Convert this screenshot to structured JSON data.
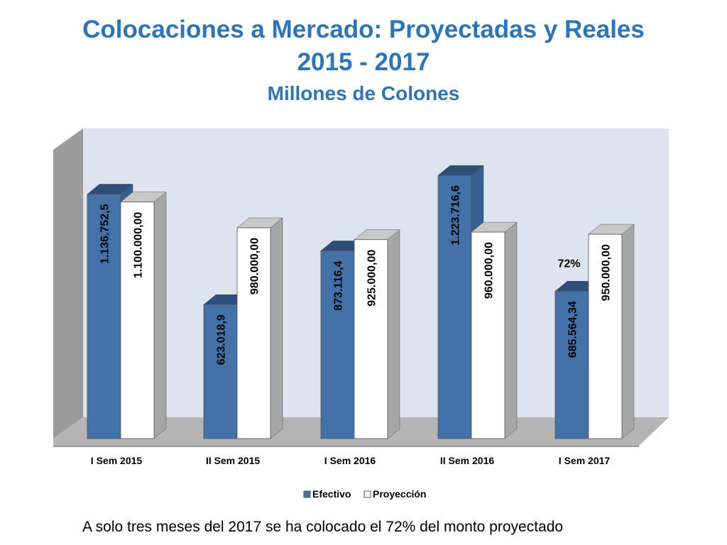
{
  "title": {
    "line1": "Colocaciones a Mercado: Proyectadas y Reales",
    "line2": "2015 - 2017",
    "line3": "Millones de Colones"
  },
  "chart_data": {
    "type": "bar",
    "categories": [
      "I Sem 2015",
      "II Sem 2015",
      "I Sem 2016",
      "II Sem 2016",
      "I Sem 2017"
    ],
    "series": [
      {
        "name": "Efectivo",
        "color": "#4472a8",
        "values": [
          1136752.5,
          623018.9,
          873116.4,
          1223716.6,
          685564.34
        ],
        "labels": [
          "1.136.752,5",
          "623.018,9",
          "873.116,4",
          "1.223.716,6",
          "685.564,34"
        ]
      },
      {
        "name": "Proyección",
        "color": "#ffffff",
        "values": [
          1100000,
          980000,
          925000,
          960000,
          950000
        ],
        "labels": [
          "1.100.000,00",
          "980.000,00",
          "925.000,00",
          "960.000,00",
          "950.000,00"
        ]
      }
    ],
    "annotations": [
      {
        "text": "72%",
        "category": "I Sem 2017"
      }
    ],
    "ylim": [
      0,
      1320000
    ],
    "grid": false,
    "legend": "bottom",
    "style": "3d-clustered-column"
  },
  "footnote": "A solo tres meses del 2017 se ha colocado el 72% del monto proyectado"
}
